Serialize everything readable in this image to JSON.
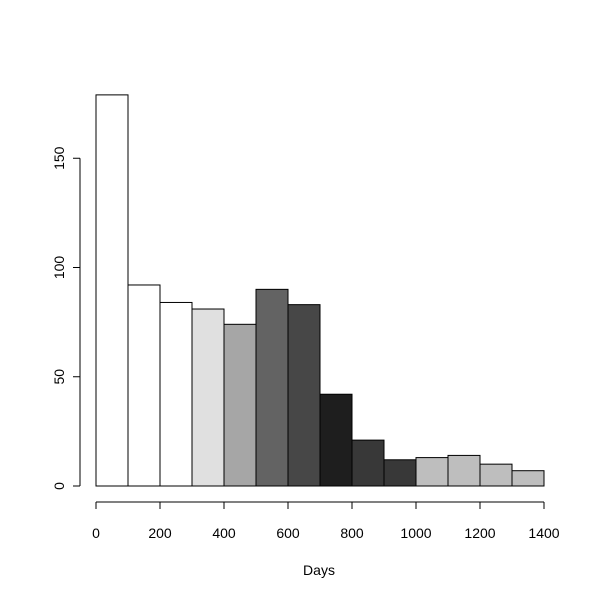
{
  "chart_data": {
    "type": "bar",
    "title": "",
    "xlabel": "Days",
    "ylabel": "",
    "xlim": [
      0,
      1400
    ],
    "ylim": [
      0,
      180
    ],
    "x_ticks": [
      0,
      200,
      400,
      600,
      800,
      1000,
      1200,
      1400
    ],
    "y_ticks": [
      0,
      50,
      100,
      150
    ],
    "grid": false,
    "legend": "none",
    "bars": [
      {
        "x0": 0,
        "x1": 100,
        "value": 179,
        "color": "#ffffff"
      },
      {
        "x0": 100,
        "x1": 200,
        "value": 92,
        "color": "#ffffff"
      },
      {
        "x0": 200,
        "x1": 300,
        "value": 84,
        "color": "#ffffff"
      },
      {
        "x0": 300,
        "x1": 400,
        "value": 81,
        "color": "#e0e0e0"
      },
      {
        "x0": 400,
        "x1": 500,
        "value": 74,
        "color": "#a6a6a6"
      },
      {
        "x0": 500,
        "x1": 600,
        "value": 90,
        "color": "#636363"
      },
      {
        "x0": 600,
        "x1": 700,
        "value": 83,
        "color": "#474747"
      },
      {
        "x0": 700,
        "x1": 800,
        "value": 42,
        "color": "#1e1e1e"
      },
      {
        "x0": 800,
        "x1": 900,
        "value": 21,
        "color": "#383838"
      },
      {
        "x0": 900,
        "x1": 1000,
        "value": 12,
        "color": "#383838"
      },
      {
        "x0": 1000,
        "x1": 1100,
        "value": 13,
        "color": "#bebebe"
      },
      {
        "x0": 1100,
        "x1": 1200,
        "value": 14,
        "color": "#bebebe"
      },
      {
        "x0": 1200,
        "x1": 1300,
        "value": 10,
        "color": "#bebebe"
      },
      {
        "x0": 1300,
        "x1": 1400,
        "value": 7,
        "color": "#bebebe"
      }
    ]
  }
}
